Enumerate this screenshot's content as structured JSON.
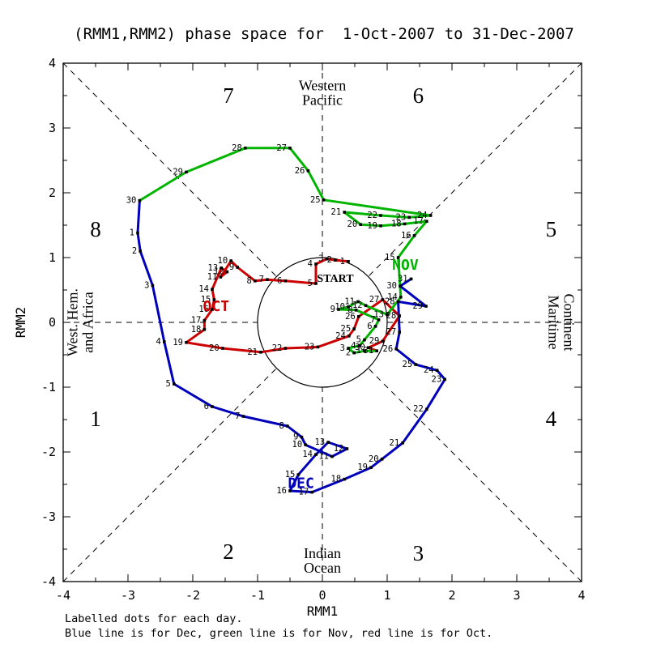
{
  "title": "(RMM1,RMM2) phase space for  1-Oct-2007 to 31-Dec-2007",
  "footer": {
    "line1": "Labelled dots for each day.",
    "line2": "Blue line is for Dec, green line is for Nov, red line is for Oct."
  },
  "chart_data": {
    "type": "line",
    "xlabel": "RMM1",
    "ylabel": "RMM2",
    "xlim": [
      -4,
      4
    ],
    "ylim": [
      -4,
      4
    ],
    "xticks": [
      "-4",
      "-3",
      "-2",
      "-1",
      "0",
      "1",
      "2",
      "3",
      "4"
    ],
    "yticks": [
      "-4",
      "-3",
      "-2",
      "-1",
      "0",
      "1",
      "2",
      "3",
      "4"
    ],
    "grid": "dashed phase-octant guides clipped at unit circle",
    "unit_circle_radius": 1,
    "start_label": {
      "text": "START",
      "x": 0.2,
      "y": 0.69
    },
    "phase_labels": [
      {
        "n": "1",
        "x": -3.5,
        "y": -1.49
      },
      {
        "n": "2",
        "x": -1.45,
        "y": -3.54
      },
      {
        "n": "3",
        "x": 1.48,
        "y": -3.56
      },
      {
        "n": "4",
        "x": 3.53,
        "y": -1.49
      },
      {
        "n": "5",
        "x": 3.53,
        "y": 1.44
      },
      {
        "n": "6",
        "x": 1.48,
        "y": 3.5
      },
      {
        "n": "7",
        "x": -1.45,
        "y": 3.5
      },
      {
        "n": "8",
        "x": -3.5,
        "y": 1.44
      }
    ],
    "region_labels": {
      "top": {
        "lines": [
          "Western",
          "Pacific"
        ],
        "x": 0.0,
        "y": 3.58
      },
      "bottom": {
        "lines": [
          "Indian",
          "Ocean"
        ],
        "x": 0.0,
        "y": -3.64
      },
      "left": {
        "lines": [
          "West. Hem.",
          "and Africa"
        ],
        "x": -3.67,
        "y": 0.0,
        "rotate": -90
      },
      "right": {
        "lines": [
          "Maritime",
          "Continent"
        ],
        "x": 3.62,
        "y": 0.0,
        "rotate": 90
      }
    },
    "series": [
      {
        "name": "Oct",
        "label": "OCT",
        "color": "#cc0000",
        "label_x": -1.64,
        "label_y": 0.25,
        "points": [
          [
            1,
            0.4,
            0.94
          ],
          [
            2,
            0.2,
            0.96
          ],
          [
            3,
            0.07,
            0.98
          ],
          [
            4,
            -0.1,
            0.9
          ],
          [
            5,
            -0.1,
            0.6
          ],
          [
            6,
            -0.57,
            0.64
          ],
          [
            7,
            -0.85,
            0.66
          ],
          [
            8,
            -1.04,
            0.64
          ],
          [
            9,
            -1.31,
            0.85
          ],
          [
            10,
            -1.41,
            0.95
          ],
          [
            11,
            -1.57,
            0.7
          ],
          [
            12,
            -1.47,
            0.78
          ],
          [
            13,
            -1.56,
            0.84
          ],
          [
            14,
            -1.7,
            0.51
          ],
          [
            15,
            -1.67,
            0.35
          ],
          [
            16,
            -1.7,
            0.2
          ],
          [
            17,
            -1.82,
            0.03
          ],
          [
            18,
            -1.82,
            -0.11
          ],
          [
            19,
            -2.1,
            -0.31
          ],
          [
            20,
            -1.54,
            -0.4
          ],
          [
            21,
            -0.95,
            -0.46
          ],
          [
            22,
            -0.57,
            -0.4
          ],
          [
            23,
            -0.07,
            -0.38
          ],
          [
            24,
            0.41,
            -0.21
          ],
          [
            25,
            0.49,
            -0.1
          ],
          [
            26,
            0.56,
            0.09
          ],
          [
            27,
            0.93,
            0.35
          ],
          [
            28,
            1.19,
            0.1
          ],
          [
            29,
            0.93,
            -0.29
          ],
          [
            30,
            0.71,
            -0.39
          ],
          [
            31,
            0.84,
            -0.44
          ]
        ]
      },
      {
        "name": "Nov",
        "label": "NOV",
        "color": "#00b400",
        "label_x": 1.28,
        "label_y": 0.89,
        "points": [
          [
            1,
            0.65,
            -0.44
          ],
          [
            2,
            0.49,
            -0.47
          ],
          [
            3,
            0.4,
            -0.4
          ],
          [
            4,
            0.57,
            -0.36
          ],
          [
            5,
            0.65,
            -0.27
          ],
          [
            6,
            0.82,
            -0.06
          ],
          [
            7,
            0.87,
            0.04
          ],
          [
            8,
            0.52,
            0.19
          ],
          [
            9,
            0.25,
            0.2
          ],
          [
            10,
            0.4,
            0.24
          ],
          [
            11,
            0.55,
            0.32
          ],
          [
            12,
            0.67,
            0.26
          ],
          [
            13,
            1.0,
            0.12
          ],
          [
            14,
            1.21,
            0.39
          ],
          [
            15,
            1.17,
            1.0
          ],
          [
            16,
            1.42,
            1.34
          ],
          [
            17,
            1.61,
            1.56
          ],
          [
            18,
            1.27,
            1.52
          ],
          [
            19,
            0.9,
            1.49
          ],
          [
            20,
            0.59,
            1.51
          ],
          [
            21,
            0.34,
            1.7
          ],
          [
            22,
            0.9,
            1.65
          ],
          [
            23,
            1.34,
            1.62
          ],
          [
            24,
            1.67,
            1.65
          ],
          [
            25,
            0.02,
            1.89
          ],
          [
            26,
            -0.22,
            2.34
          ],
          [
            27,
            -0.5,
            2.69
          ],
          [
            28,
            -1.19,
            2.69
          ],
          [
            29,
            -2.1,
            2.32
          ],
          [
            30,
            -2.82,
            1.88
          ]
        ]
      },
      {
        "name": "Dec",
        "label": "DEC",
        "color": "#0000bb",
        "label_x": -0.33,
        "label_y": -2.48,
        "points": [
          [
            1,
            -2.85,
            1.38
          ],
          [
            2,
            -2.81,
            1.1
          ],
          [
            3,
            -2.62,
            0.57
          ],
          [
            4,
            -2.44,
            -0.3
          ],
          [
            5,
            -2.29,
            -0.95
          ],
          [
            6,
            -1.7,
            -1.3
          ],
          [
            7,
            -1.22,
            -1.45
          ],
          [
            8,
            -0.54,
            -1.6
          ],
          [
            9,
            -0.32,
            -1.77
          ],
          [
            10,
            -0.26,
            -1.89
          ],
          [
            11,
            0.15,
            -2.07
          ],
          [
            12,
            0.38,
            -1.95
          ],
          [
            13,
            0.09,
            -1.85
          ],
          [
            14,
            -0.1,
            -2.04
          ],
          [
            15,
            -0.37,
            -2.35
          ],
          [
            16,
            -0.5,
            -2.6
          ],
          [
            17,
            -0.16,
            -2.62
          ],
          [
            18,
            0.34,
            -2.42
          ],
          [
            19,
            0.75,
            -2.24
          ],
          [
            20,
            0.92,
            -2.11
          ],
          [
            21,
            1.24,
            -1.86
          ],
          [
            22,
            1.61,
            -1.34
          ],
          [
            23,
            1.89,
            -0.88
          ],
          [
            24,
            1.77,
            -0.74
          ],
          [
            25,
            1.44,
            -0.65
          ],
          [
            26,
            1.14,
            -0.41
          ],
          [
            27,
            1.19,
            -0.15
          ],
          [
            28,
            1.17,
            0.32
          ],
          [
            29,
            1.6,
            0.25
          ],
          [
            30,
            1.2,
            0.56
          ],
          [
            31,
            1.37,
            0.67
          ]
        ]
      }
    ]
  },
  "colors": {
    "oct": "#cc0000",
    "nov": "#00b400",
    "dec": "#0000bb",
    "axis": "#000000",
    "day_label": "#000000"
  }
}
